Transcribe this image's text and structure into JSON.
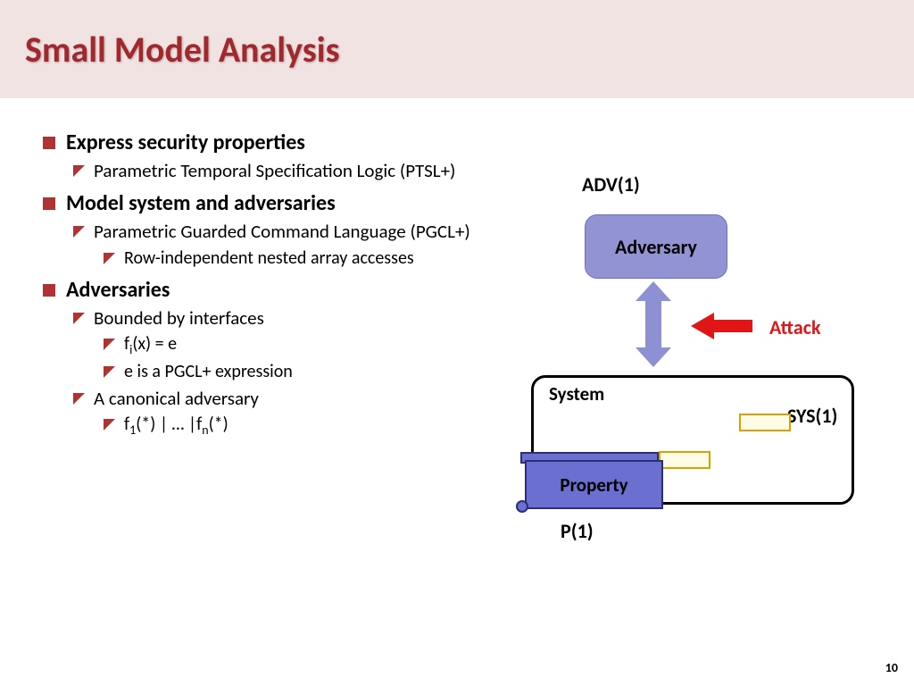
{
  "slide": {
    "title": "Small Model Analysis",
    "page_number": "10"
  },
  "bullets": {
    "b1": "Express security properties",
    "b1_1": "Parametric Temporal Specification Logic (PTSL+)",
    "b2": "Model system and adversaries",
    "b2_1": "Parametric Guarded Command Language (PGCL+)",
    "b2_1_1": "Row-independent nested array accesses",
    "b3": "Adversaries",
    "b3_1": "Bounded by interfaces",
    "b3_1_1": "f<sub class='sub'>i</sub>(x) = e",
    "b3_1_2": "e is a PGCL+ expression",
    "b3_2": "A canonical adversary",
    "b3_2_1": "f<sub class='sub'>1</sub>(*) | … |f<sub class='sub'>n</sub>(*)"
  },
  "diagram": {
    "adv_label": "ADV(1)",
    "adversary_box": "Adversary",
    "attack_label": "Attack",
    "system_label": "System",
    "sys_label": "SYS(1)",
    "property_box": "Property",
    "p_label": "P(1)",
    "colors": {
      "adversary_fill": "#9193d3",
      "property_fill": "#6b6fd0",
      "box_border": "#000000",
      "yellow_rect_border": "#d5a300",
      "yellow_rect_fill": "#fffbe6",
      "attack_red": "#e01616",
      "bidir_arrow": "#8d90d2",
      "green_arrow": "#3aa98a"
    }
  },
  "style": {
    "title_color": "#a1282c",
    "title_bg": "#f2e3e3",
    "bullet_red": "#b03333"
  }
}
